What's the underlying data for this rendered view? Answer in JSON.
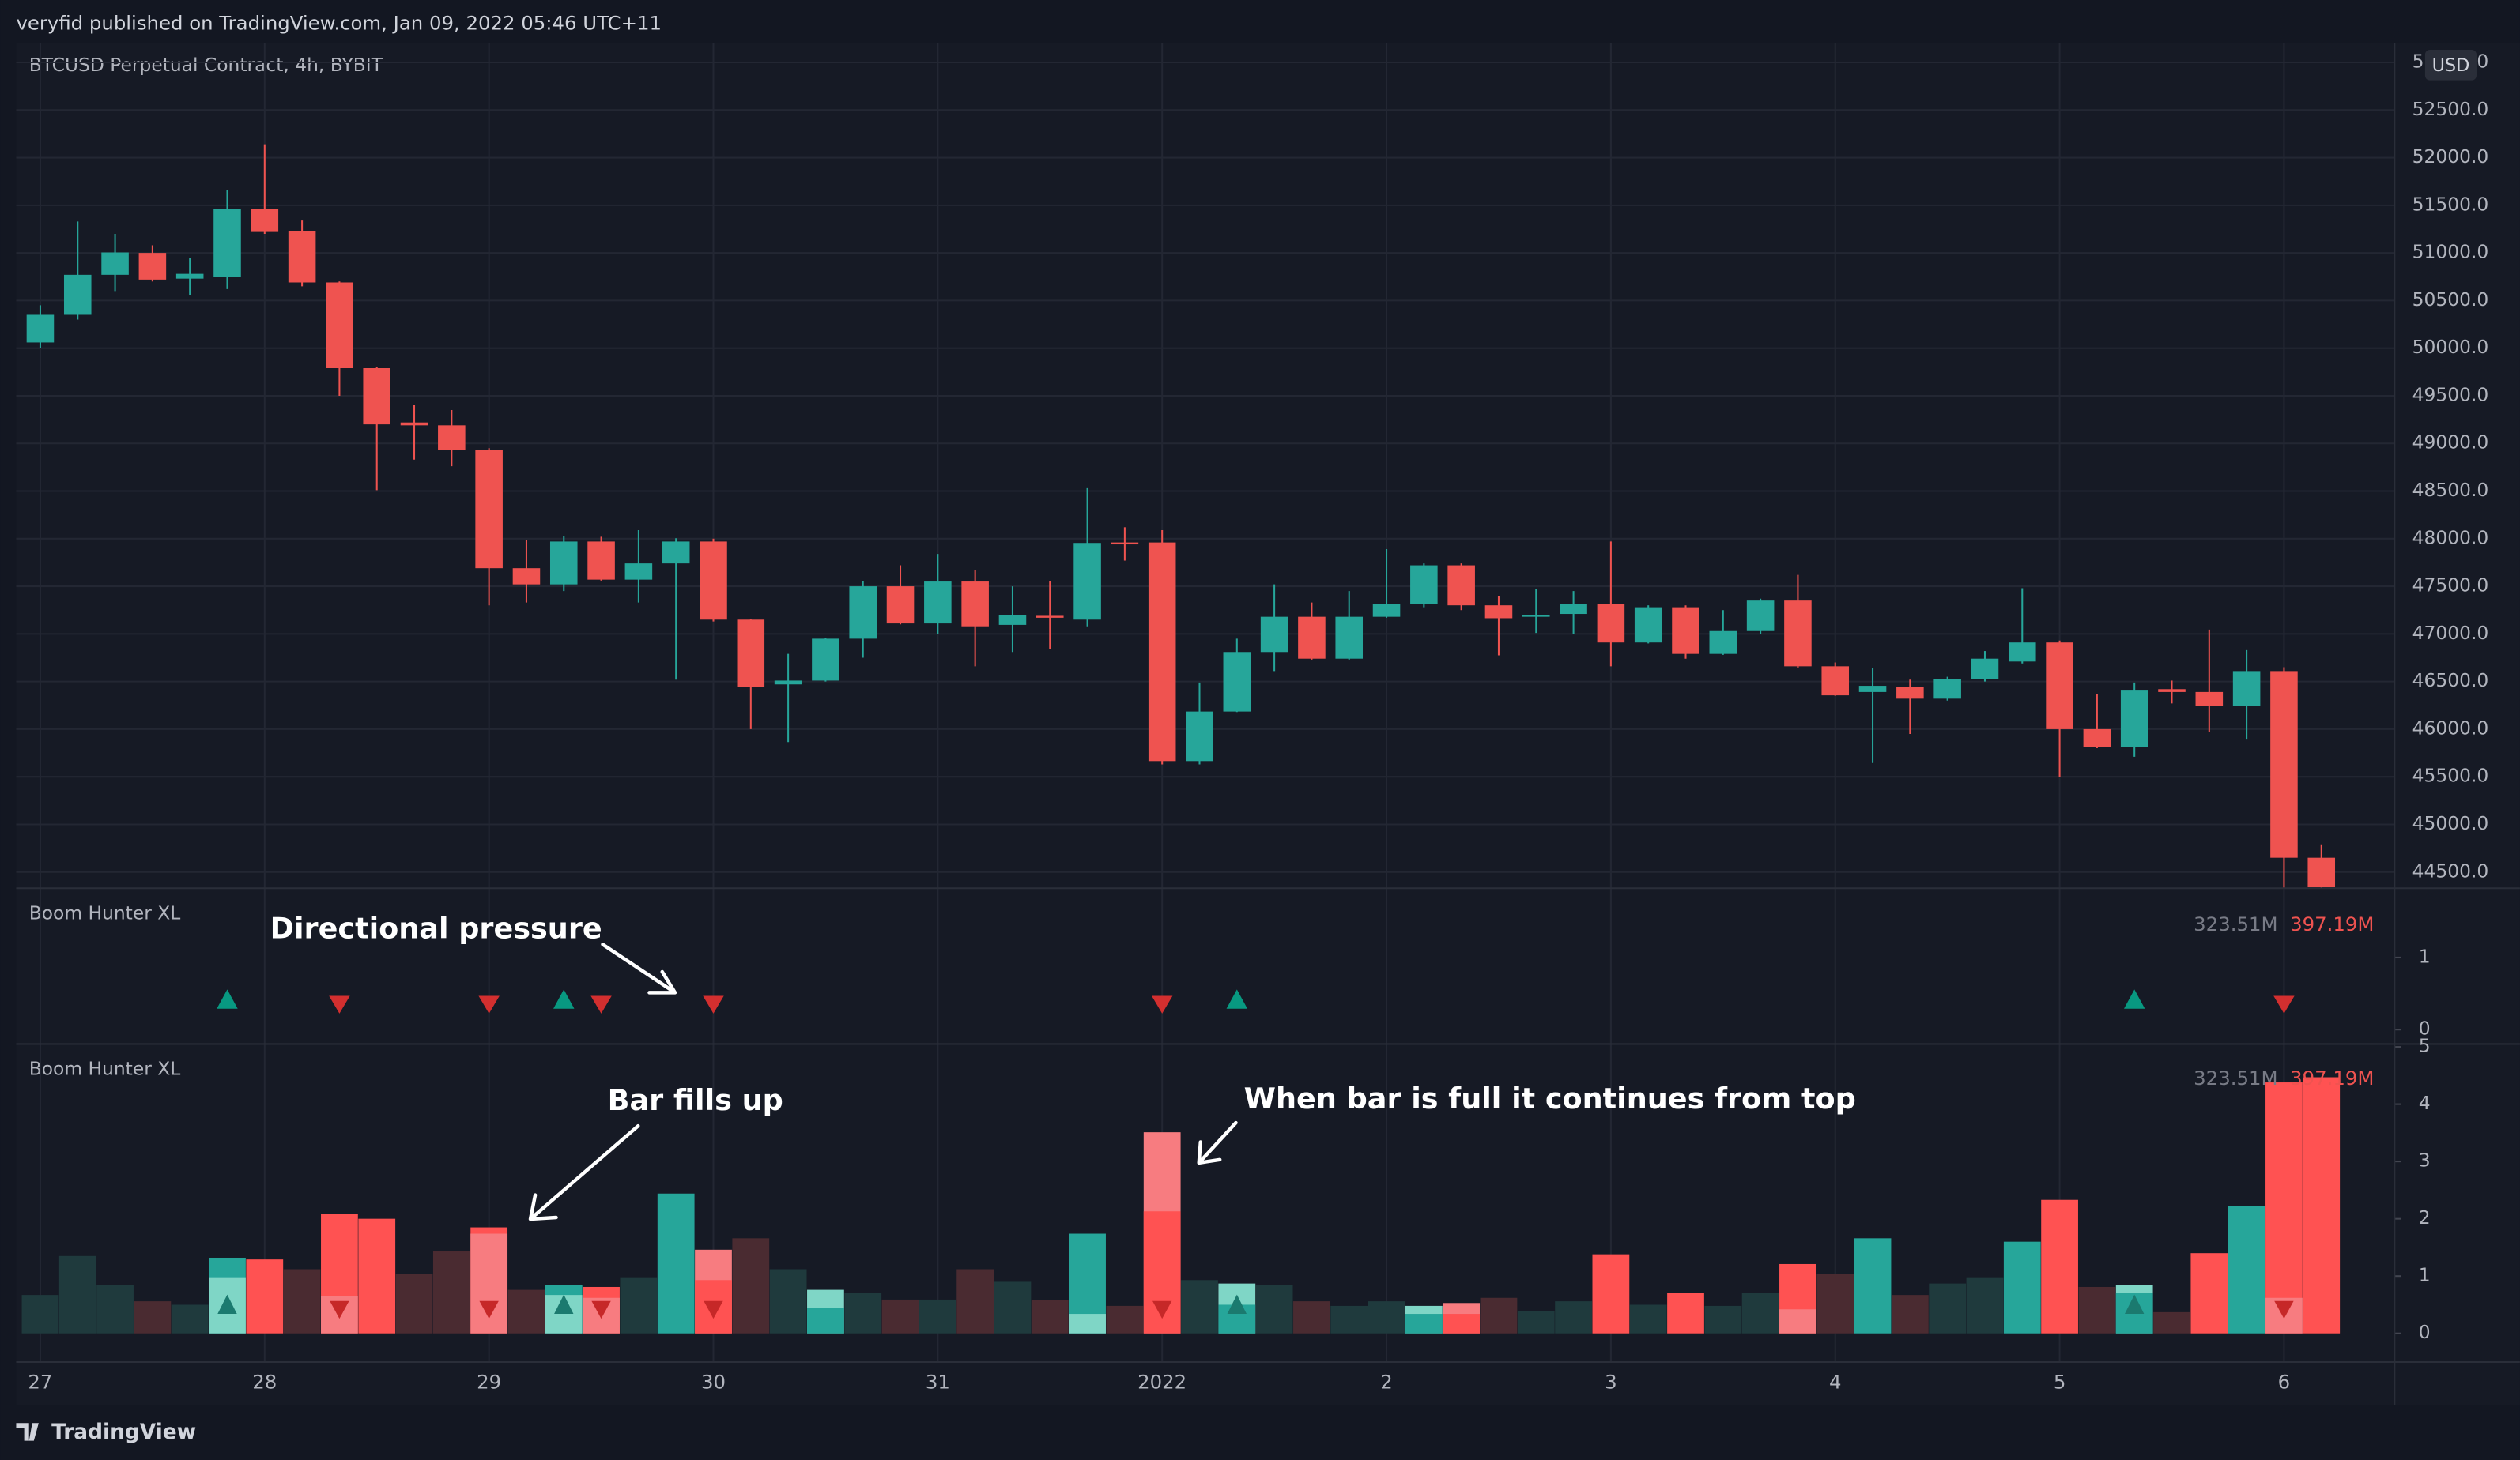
{
  "header": {
    "publisher": "veryfid published on TradingView.com, Jan 09, 2022 05:46 UTC+11"
  },
  "footer": {
    "brand": "TradingView"
  },
  "chart_data": [
    {
      "type": "candlestick",
      "title": "BTCUSD Perpetual Contract, 4h, BYBIT",
      "currency": "USD",
      "categories": [
        "27",
        null,
        null,
        null,
        null,
        null,
        "28",
        null,
        null,
        null,
        null,
        null,
        "29",
        null,
        null,
        null,
        null,
        null,
        "30",
        null,
        null,
        null,
        null,
        null,
        "31",
        null,
        null,
        null,
        null,
        null,
        "2022",
        null,
        null,
        null,
        null,
        null,
        "2",
        null,
        null,
        null,
        null,
        null,
        "3",
        null,
        null,
        null,
        null,
        null,
        "4",
        null,
        null,
        null,
        null,
        null,
        "5",
        null,
        null,
        null,
        null,
        null,
        "6",
        null
      ],
      "open": [
        50060,
        50350,
        50770,
        51000,
        50730,
        50750,
        51460,
        51225,
        50690,
        49790,
        49220,
        49190,
        48930,
        47690,
        47520,
        47970,
        47570,
        47740,
        47970,
        47150,
        46470,
        46510,
        46950,
        47500,
        47110,
        47550,
        47095,
        47190,
        47150,
        47960,
        47960,
        45665,
        46185,
        46810,
        47180,
        46740,
        47180,
        47315,
        47720,
        47300,
        47180,
        47210,
        47315,
        46910,
        47280,
        46790,
        47030,
        47350,
        46660,
        46390,
        46440,
        46320,
        46525,
        46710,
        46910,
        46000,
        45815,
        46420,
        46390,
        46240,
        46610,
        44650
      ],
      "high": [
        50450,
        51330,
        51200,
        51080,
        50950,
        51660,
        52140,
        51340,
        50700,
        49800,
        49400,
        49350,
        48950,
        47990,
        48030,
        48020,
        48090,
        48005,
        48000,
        47160,
        46790,
        46960,
        47550,
        47720,
        47840,
        47670,
        47500,
        47550,
        48530,
        48120,
        48090,
        46490,
        46950,
        47520,
        47330,
        47450,
        47890,
        47740,
        47740,
        47400,
        47470,
        47450,
        47970,
        47300,
        47300,
        47250,
        47370,
        47620,
        46700,
        46640,
        46520,
        46550,
        46820,
        47480,
        46930,
        46370,
        46490,
        46510,
        47045,
        46830,
        46650,
        44790
      ],
      "low": [
        50000,
        50300,
        50600,
        50700,
        50560,
        50620,
        51200,
        50650,
        49500,
        48510,
        48830,
        48760,
        47300,
        47330,
        47450,
        47560,
        47330,
        46520,
        47130,
        46000,
        45865,
        46500,
        46750,
        47100,
        47000,
        46660,
        46810,
        46840,
        47080,
        47770,
        45630,
        45630,
        46180,
        46610,
        46730,
        46730,
        47170,
        47280,
        47250,
        46775,
        47010,
        47000,
        46660,
        46900,
        46740,
        46780,
        47000,
        46640,
        46350,
        45645,
        45950,
        46300,
        46500,
        46690,
        45495,
        45800,
        45710,
        46270,
        45970,
        45890,
        44330,
        44330
      ],
      "close": [
        50350,
        50770,
        51005,
        50720,
        50780,
        51460,
        51220,
        50690,
        49790,
        49200,
        49190,
        48930,
        47690,
        47520,
        47970,
        47570,
        47740,
        47970,
        47150,
        46440,
        46510,
        46950,
        47500,
        47110,
        47550,
        47080,
        47200,
        47170,
        47955,
        47940,
        45665,
        46185,
        46810,
        47180,
        46740,
        47180,
        47315,
        47720,
        47300,
        47165,
        47200,
        47315,
        46910,
        47280,
        46790,
        47030,
        47350,
        46660,
        46355,
        46455,
        46320,
        46525,
        46740,
        46910,
        46000,
        45815,
        46405,
        46390,
        46240,
        46610,
        44650,
        44340
      ],
      "up_color": "#26a69a",
      "down_color": "#ef5350",
      "ylim": [
        44330,
        53200
      ],
      "yticks": [
        {
          "value": 44500,
          "label": "44500.0"
        },
        {
          "value": 45000,
          "label": "45000.0"
        },
        {
          "value": 45500,
          "label": "45500.0"
        },
        {
          "value": 46000,
          "label": "46000.0"
        },
        {
          "value": 46500,
          "label": "46500.0"
        },
        {
          "value": 47000,
          "label": "47000.0"
        },
        {
          "value": 47500,
          "label": "47500.0"
        },
        {
          "value": 48000,
          "label": "48000.0"
        },
        {
          "value": 48500,
          "label": "48500.0"
        },
        {
          "value": 49000,
          "label": "49000.0"
        },
        {
          "value": 49500,
          "label": "49500.0"
        },
        {
          "value": 50000,
          "label": "50000.0"
        },
        {
          "value": 50500,
          "label": "50500.0"
        },
        {
          "value": 51000,
          "label": "51000.0"
        },
        {
          "value": 51500,
          "label": "51500.0"
        },
        {
          "value": 52000,
          "label": "52000.0"
        },
        {
          "value": 52500,
          "label": "52500.0"
        },
        {
          "value": 53000,
          "label": "53000.0"
        }
      ],
      "grid": true
    },
    {
      "type": "signals",
      "title": "Boom Hunter XL",
      "readouts": [
        {
          "label": "323.51M",
          "color": "#787b86"
        },
        {
          "label": "397.19M",
          "color": "#ef5350"
        }
      ],
      "signals": [
        {
          "index": 5,
          "direction": "up"
        },
        {
          "index": 8,
          "direction": "down"
        },
        {
          "index": 12,
          "direction": "down"
        },
        {
          "index": 14,
          "direction": "up"
        },
        {
          "index": 15,
          "direction": "down"
        },
        {
          "index": 18,
          "direction": "down"
        },
        {
          "index": 30,
          "direction": "down"
        },
        {
          "index": 32,
          "direction": "up"
        },
        {
          "index": 56,
          "direction": "up"
        },
        {
          "index": 60,
          "direction": "down"
        }
      ],
      "up_color": "#089981",
      "down_color": "#d32f2f",
      "ylim": [
        -0.2,
        1.96
      ],
      "yticks": [
        0,
        1
      ],
      "annotations": [
        "Directional pressure"
      ]
    },
    {
      "type": "bar",
      "title": "Boom Hunter XL",
      "readouts": [
        {
          "label": "323.51M",
          "color": "#787b86"
        },
        {
          "label": "397.19M",
          "color": "#ef5350"
        }
      ],
      "values": [
        0.67,
        1.35,
        0.84,
        0.56,
        0.5,
        1.32,
        1.29,
        1.12,
        2.08,
        2.0,
        1.04,
        1.43,
        1.85,
        0.76,
        0.84,
        0.81,
        0.98,
        2.44,
        1.46,
        1.66,
        1.12,
        0.76,
        0.7,
        0.59,
        0.59,
        1.12,
        0.9,
        0.58,
        1.74,
        0.48,
        3.51,
        0.93,
        0.87,
        0.84,
        0.56,
        0.48,
        0.56,
        0.48,
        0.53,
        0.62,
        0.39,
        0.56,
        1.38,
        0.5,
        0.7,
        0.48,
        0.7,
        1.21,
        1.04,
        1.66,
        0.67,
        0.87,
        0.98,
        1.6,
        2.33,
        0.81,
        0.84,
        0.37,
        1.4,
        2.22,
        4.38,
        4.47
      ],
      "colors": [
        "#1f3a3d",
        "#1f3a3d",
        "#1f3a3d",
        "#4a2b31",
        "#1f3a3d",
        "#26a69a",
        "#ff5252",
        "#4a2b31",
        "#ff5252",
        "#ff5252",
        "#4a2b31",
        "#4a2b31",
        "#ff5252",
        "#4a2b31",
        "#26a69a",
        "#ff5252",
        "#1f3a3d",
        "#26a69a",
        "#f77c80",
        "#4a2b31",
        "#1f3a3d",
        "#7fd6c6",
        "#1f3a3d",
        "#4a2b31",
        "#1f3a3d",
        "#4a2b31",
        "#1f3a3d",
        "#4a2b31",
        "#26a69a",
        "#4a2b31",
        "#f77c80",
        "#1f3a3d",
        "#7fd6c6",
        "#1f3a3d",
        "#4a2b31",
        "#1f3a3d",
        "#1f3a3d",
        "#7fd6c6",
        "#f77c80",
        "#4a2b31",
        "#1f3a3d",
        "#1f3a3d",
        "#ff5252",
        "#1f3a3d",
        "#ff5252",
        "#1f3a3d",
        "#1f3a3d",
        "#ff5252",
        "#4a2b31",
        "#26a69a",
        "#4a2b31",
        "#1f3a3d",
        "#1f3a3d",
        "#26a69a",
        "#ff5252",
        "#4a2b31",
        "#7fd6c6",
        "#4a2b31",
        "#ff5252",
        "#26a69a",
        "#ff5252",
        "#ff5252"
      ],
      "fill_values": [
        null,
        null,
        null,
        null,
        null,
        0.98,
        null,
        null,
        0.65,
        null,
        null,
        null,
        1.74,
        null,
        0.67,
        0.62,
        null,
        null,
        0.93,
        null,
        null,
        0.45,
        null,
        null,
        null,
        null,
        null,
        null,
        0.34,
        null,
        2.13,
        null,
        0.5,
        null,
        null,
        null,
        null,
        0.34,
        0.34,
        null,
        null,
        null,
        null,
        null,
        null,
        null,
        null,
        0.42,
        null,
        null,
        null,
        null,
        null,
        null,
        null,
        null,
        0.7,
        null,
        null,
        null,
        0.62,
        null
      ],
      "fill_colors": [
        null,
        null,
        null,
        null,
        null,
        "#7fd6c6",
        null,
        null,
        "#f77c80",
        null,
        null,
        null,
        "#f77c80",
        null,
        "#7fd6c6",
        "#f77c80",
        null,
        null,
        "#ff5252",
        null,
        null,
        "#26a69a",
        null,
        null,
        null,
        null,
        null,
        null,
        "#7fd6c6",
        null,
        "#ff5252",
        null,
        "#26a69a",
        null,
        null,
        null,
        null,
        "#26a69a",
        "#ff5252",
        null,
        null,
        null,
        null,
        null,
        null,
        null,
        null,
        "#f77c80",
        null,
        null,
        null,
        null,
        null,
        null,
        null,
        null,
        "#26a69a",
        null,
        null,
        null,
        "#f77c80",
        null
      ],
      "ylim": [
        -0.5,
        5.05
      ],
      "yticks": [
        0,
        1,
        2,
        3,
        4,
        5
      ],
      "annotations": [
        "Bar fills up",
        "When bar is full it continues from top"
      ]
    }
  ]
}
